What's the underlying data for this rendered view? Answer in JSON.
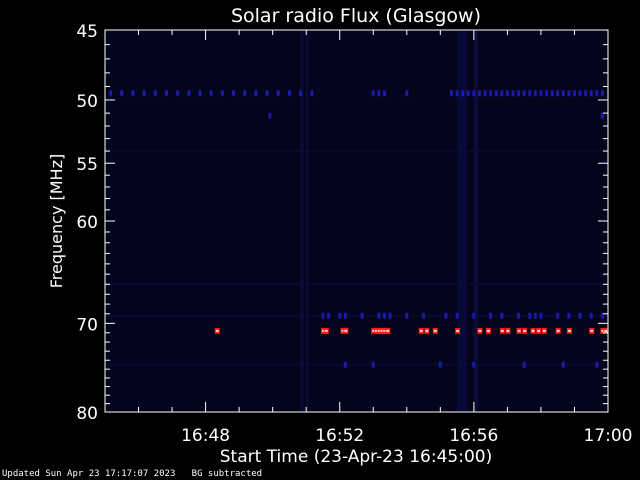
{
  "chart_data": {
    "type": "heatmap",
    "title": "Solar radio Flux (Glasgow)",
    "xlabel": "Start Time (23-Apr-23 16:45:00)",
    "ylabel": "Frequency [MHz]",
    "xlim": [
      "16:45",
      "17:00"
    ],
    "ylim": [
      45,
      80
    ],
    "y_scale": "log",
    "y_inverted": true,
    "x_ticks": [
      "16:48",
      "16:52",
      "16:56",
      "17:00"
    ],
    "y_ticks": [
      45,
      50,
      55,
      60,
      70,
      80
    ],
    "colors": {
      "background": "#000000",
      "plot_background": "#04041c",
      "low_emission": "#1a1aa8",
      "high_emission": "#ff1a1a"
    },
    "bands": [
      {
        "freq": 49.5,
        "level": "low",
        "times": [
          "16:45:10",
          "16:45:30",
          "16:45:50",
          "16:46:10",
          "16:46:30",
          "16:46:50",
          "16:47:10",
          "16:47:30",
          "16:47:50",
          "16:48:10",
          "16:48:30",
          "16:48:50",
          "16:49:10",
          "16:49:30",
          "16:49:50",
          "16:50:10",
          "16:50:30",
          "16:50:50",
          "16:51:10",
          "16:53:00",
          "16:53:10",
          "16:53:20",
          "16:54:00",
          "16:55:20",
          "16:55:30",
          "16:55:40",
          "16:55:50",
          "16:56:00",
          "16:56:10",
          "16:56:20",
          "16:56:30",
          "16:56:40",
          "16:56:50",
          "16:57:00",
          "16:57:10",
          "16:57:20",
          "16:57:30",
          "16:57:40",
          "16:57:50",
          "16:58:00",
          "16:58:10",
          "16:58:20",
          "16:58:30",
          "16:58:40",
          "16:58:50",
          "16:59:00",
          "16:59:10",
          "16:59:20",
          "16:59:30",
          "16:59:40",
          "16:59:50"
        ]
      },
      {
        "freq": 51.2,
        "level": "low",
        "times": [
          "16:49:55",
          "16:59:50"
        ]
      },
      {
        "freq": 69.2,
        "level": "low",
        "times": [
          "16:51:30",
          "16:51:40",
          "16:52:00",
          "16:52:10",
          "16:52:40",
          "16:53:10",
          "16:53:20",
          "16:53:30",
          "16:54:00",
          "16:54:30",
          "16:55:10",
          "16:55:30",
          "16:56:00",
          "16:56:30",
          "16:56:50",
          "16:57:20",
          "16:57:40",
          "16:57:50",
          "16:58:00",
          "16:58:30",
          "16:58:50",
          "16:59:10",
          "16:59:30",
          "16:59:50"
        ]
      },
      {
        "freq": 70.8,
        "level": "high",
        "times": [
          "16:48:20",
          "16:51:30",
          "16:51:35",
          "16:52:05",
          "16:52:10",
          "16:53:00",
          "16:53:05",
          "16:53:10",
          "16:53:15",
          "16:53:20",
          "16:53:25",
          "16:54:25",
          "16:54:35",
          "16:54:50",
          "16:55:30",
          "16:56:10",
          "16:56:25",
          "16:56:50",
          "16:57:00",
          "16:57:20",
          "16:57:30",
          "16:57:45",
          "16:57:55",
          "16:58:05",
          "16:58:30",
          "16:58:50",
          "16:59:30",
          "16:59:50",
          "16:59:55"
        ]
      },
      {
        "freq": 74.5,
        "level": "low",
        "times": [
          "16:52:10",
          "16:53:00",
          "16:55:00",
          "16:56:00",
          "16:57:30",
          "16:58:40",
          "16:59:40"
        ]
      }
    ]
  },
  "footer": {
    "updated": "Updated Sun Apr 23 17:17:07 2023",
    "note": "BG subtracted"
  }
}
